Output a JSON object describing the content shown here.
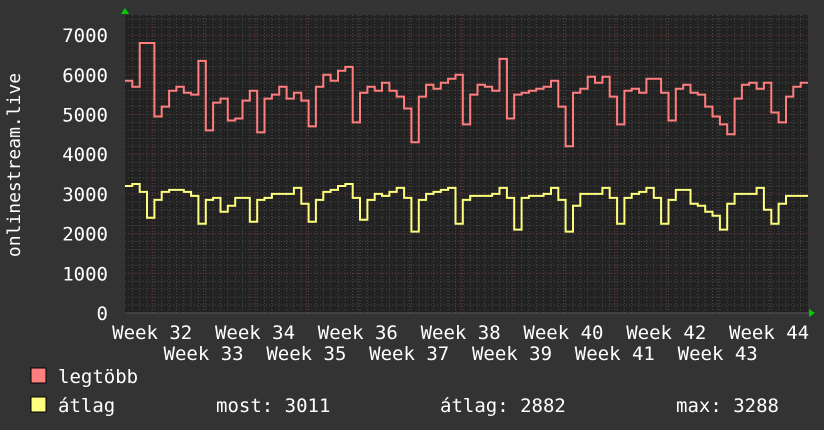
{
  "chart_data": {
    "type": "line",
    "step": true,
    "ylabel": "onlinestream.live",
    "ylim": [
      0,
      7500
    ],
    "yticks": [
      0,
      1000,
      2000,
      3000,
      4000,
      5000,
      6000,
      7000
    ],
    "xtick_labels": [
      "Week 32",
      "Week 33",
      "Week 34",
      "Week 35",
      "Week 36",
      "Week 37",
      "Week 38",
      "Week 39",
      "Week 40",
      "Week 41",
      "Week 42",
      "Week 43",
      "Week 44"
    ],
    "grid": true,
    "background": "#222222",
    "series": [
      {
        "name": "legtöbb",
        "color": "#ff7f7f",
        "values": [
          5850,
          5700,
          6800,
          6800,
          4950,
          5200,
          5600,
          5700,
          5550,
          5500,
          6350,
          4600,
          5300,
          5400,
          4850,
          4900,
          5350,
          5600,
          4550,
          5400,
          5500,
          5700,
          5400,
          5550,
          5350,
          4700,
          5700,
          6000,
          5850,
          6100,
          6200,
          4800,
          5550,
          5700,
          5600,
          5800,
          5600,
          5450,
          5150,
          4300,
          5450,
          5750,
          5650,
          5800,
          5900,
          6000,
          4750,
          5500,
          5750,
          5700,
          5600,
          6400,
          4900,
          5500,
          5550,
          5600,
          5650,
          5700,
          5850,
          5200,
          4200,
          5550,
          5650,
          5950,
          5800,
          5950,
          5450,
          4750,
          5600,
          5650,
          5550,
          5900,
          5900,
          5550,
          4850,
          5650,
          5750,
          5550,
          5500,
          5200,
          4950,
          4750,
          4500,
          5400,
          5750,
          5800,
          5650,
          5800,
          5050,
          4800,
          5450,
          5700,
          5800
        ]
      },
      {
        "name": "átlag",
        "color": "#ffff7f",
        "values": [
          3200,
          3250,
          3050,
          2400,
          2850,
          3050,
          3100,
          3100,
          3050,
          2950,
          2250,
          2850,
          2900,
          2550,
          2700,
          2900,
          2900,
          2300,
          2850,
          2900,
          3000,
          3000,
          3000,
          3150,
          2750,
          2300,
          2850,
          3050,
          3100,
          3200,
          3250,
          2900,
          2350,
          2850,
          3000,
          2950,
          3050,
          3150,
          2900,
          2050,
          2850,
          3000,
          3050,
          3100,
          3150,
          2250,
          2850,
          2950,
          2950,
          2950,
          3000,
          3150,
          2900,
          2100,
          2900,
          2950,
          2950,
          3000,
          3150,
          2850,
          2050,
          2700,
          3000,
          3000,
          3000,
          3150,
          2900,
          2250,
          2900,
          3000,
          3050,
          3150,
          2900,
          2250,
          2850,
          3100,
          3100,
          2750,
          2700,
          2550,
          2450,
          2100,
          2750,
          3000,
          3000,
          3000,
          3150,
          2600,
          2250,
          2750,
          2950,
          2950,
          2950
        ]
      }
    ]
  },
  "legend": {
    "max_label": "legtöbb",
    "avg_label": "átlag",
    "now": "most: 3011",
    "average": "átlag: 2882",
    "max": "max: 3288"
  }
}
